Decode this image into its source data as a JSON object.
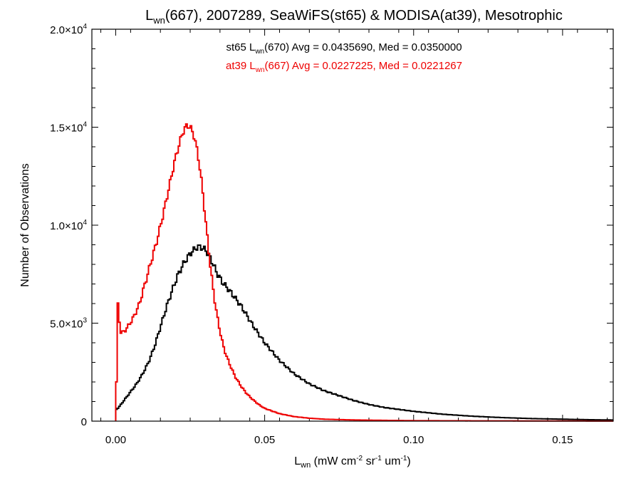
{
  "chart_data": {
    "type": "line",
    "title": {
      "main": "L",
      "sub": "wn",
      "rest": "(667), 2007289, SeaWiFS(st65) & MODISA(at39), Mesotrophic"
    },
    "xlabel": {
      "main": "L",
      "sub": "wn",
      "pre_unit": " (mW cm",
      "exp1": "-2",
      "mid1": " sr",
      "exp2": "-1",
      "mid2": " um",
      "exp3": "-1",
      "post": ")"
    },
    "ylabel": "Number of Observations",
    "xlim": [
      -0.008,
      0.167
    ],
    "ylim": [
      0,
      20000
    ],
    "x_ticks": [
      {
        "value": 0.0,
        "label": "0.00"
      },
      {
        "value": 0.05,
        "label": "0.05"
      },
      {
        "value": 0.1,
        "label": "0.10"
      },
      {
        "value": 0.15,
        "label": "0.15"
      }
    ],
    "y_ticks": [
      {
        "value": 0,
        "mant": "0",
        "exp": ""
      },
      {
        "value": 5000,
        "mant": "5.0×10",
        "exp": "3"
      },
      {
        "value": 10000,
        "mant": "1.0×10",
        "exp": "4"
      },
      {
        "value": 15000,
        "mant": "1.5×10",
        "exp": "4"
      },
      {
        "value": 20000,
        "mant": "2.0×10",
        "exp": "4"
      }
    ],
    "annotations": [
      {
        "pre": "st65 L",
        "sub": "wn",
        "post": "(670) Avg = 0.0435690, Med = 0.0350000",
        "color": "#000000"
      },
      {
        "pre": "at39 L",
        "sub": "wn",
        "post": "(667) Avg = 0.0227225, Med = 0.0221267",
        "color": "#ee0000"
      }
    ],
    "series": [
      {
        "color": "#000000",
        "x": [
          0.0,
          0.0002,
          0.001,
          0.002,
          0.003,
          0.005,
          0.007,
          0.009,
          0.011,
          0.013,
          0.015,
          0.017,
          0.019,
          0.021,
          0.023,
          0.025,
          0.027,
          0.028,
          0.029,
          0.03,
          0.031,
          0.032,
          0.033,
          0.034,
          0.035,
          0.036,
          0.038,
          0.04,
          0.042,
          0.044,
          0.046,
          0.048,
          0.05,
          0.055,
          0.06,
          0.065,
          0.07,
          0.075,
          0.08,
          0.085,
          0.09,
          0.095,
          0.1,
          0.11,
          0.12,
          0.13,
          0.14,
          0.15,
          0.16,
          0.167
        ],
        "y": [
          0,
          600,
          700,
          900,
          1100,
          1500,
          1900,
          2400,
          3000,
          3800,
          4800,
          5800,
          6700,
          7500,
          8100,
          8550,
          8850,
          8900,
          8850,
          8750,
          8550,
          8250,
          7900,
          7550,
          7300,
          7050,
          6700,
          6300,
          5900,
          5400,
          4900,
          4450,
          4000,
          3100,
          2400,
          1900,
          1550,
          1300,
          1050,
          850,
          700,
          600,
          500,
          350,
          250,
          180,
          130,
          100,
          70,
          60
        ]
      },
      {
        "color": "#ee0000",
        "x": [
          0.0,
          0.0005,
          0.0008,
          0.0012,
          0.0015,
          0.002,
          0.003,
          0.004,
          0.006,
          0.008,
          0.01,
          0.012,
          0.014,
          0.016,
          0.018,
          0.02,
          0.022,
          0.023,
          0.024,
          0.025,
          0.026,
          0.027,
          0.028,
          0.029,
          0.03,
          0.031,
          0.032,
          0.033,
          0.034,
          0.035,
          0.036,
          0.037,
          0.038,
          0.04,
          0.042,
          0.044,
          0.046,
          0.048,
          0.05,
          0.055,
          0.06,
          0.065,
          0.07,
          0.08,
          0.09,
          0.1,
          0.12,
          0.14,
          0.167
        ],
        "y": [
          0,
          4000,
          6300,
          5200,
          4600,
          4500,
          4600,
          4800,
          5300,
          6000,
          7100,
          8200,
          9300,
          10600,
          12000,
          13400,
          14500,
          14900,
          15100,
          15000,
          14700,
          14100,
          13200,
          12000,
          10500,
          9000,
          7600,
          6400,
          5400,
          4600,
          3900,
          3400,
          3000,
          2300,
          1800,
          1400,
          1100,
          850,
          650,
          380,
          230,
          150,
          100,
          60,
          40,
          25,
          15,
          10,
          5
        ]
      }
    ]
  }
}
